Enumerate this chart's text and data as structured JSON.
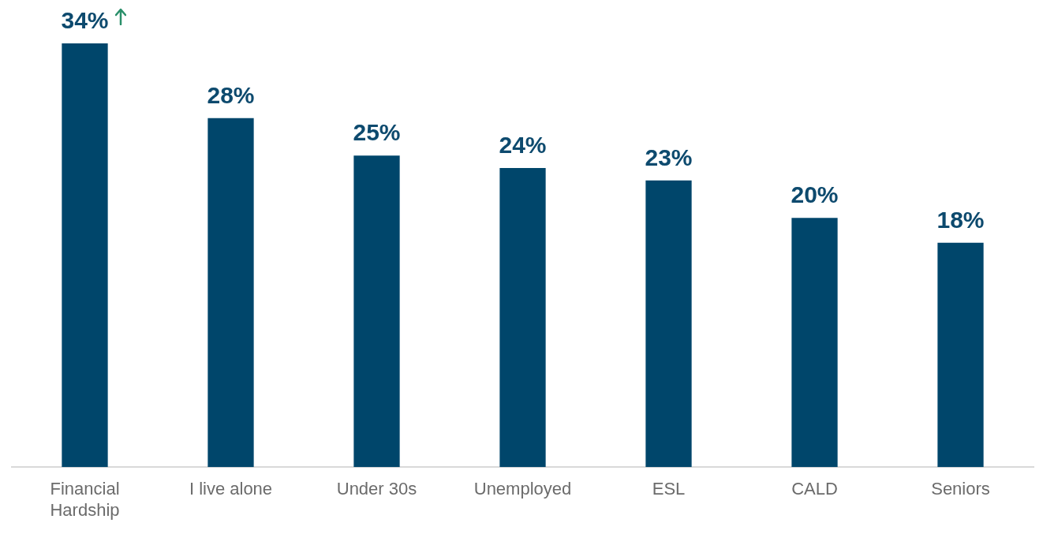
{
  "chart_data": {
    "type": "bar",
    "categories": [
      "Financial Hardship",
      "I live alone",
      "Under 30s",
      "Unemployed",
      "ESL",
      "CALD",
      "Seniors"
    ],
    "values": [
      34,
      28,
      25,
      24,
      23,
      20,
      18
    ],
    "color": "#00466b",
    "data_labels": true,
    "value_labels": [
      "34%",
      "28%",
      "25%",
      "24%",
      "23%",
      "20%",
      "18%"
    ],
    "grid": false,
    "legend": false,
    "tick_labels": "x"
  }
}
